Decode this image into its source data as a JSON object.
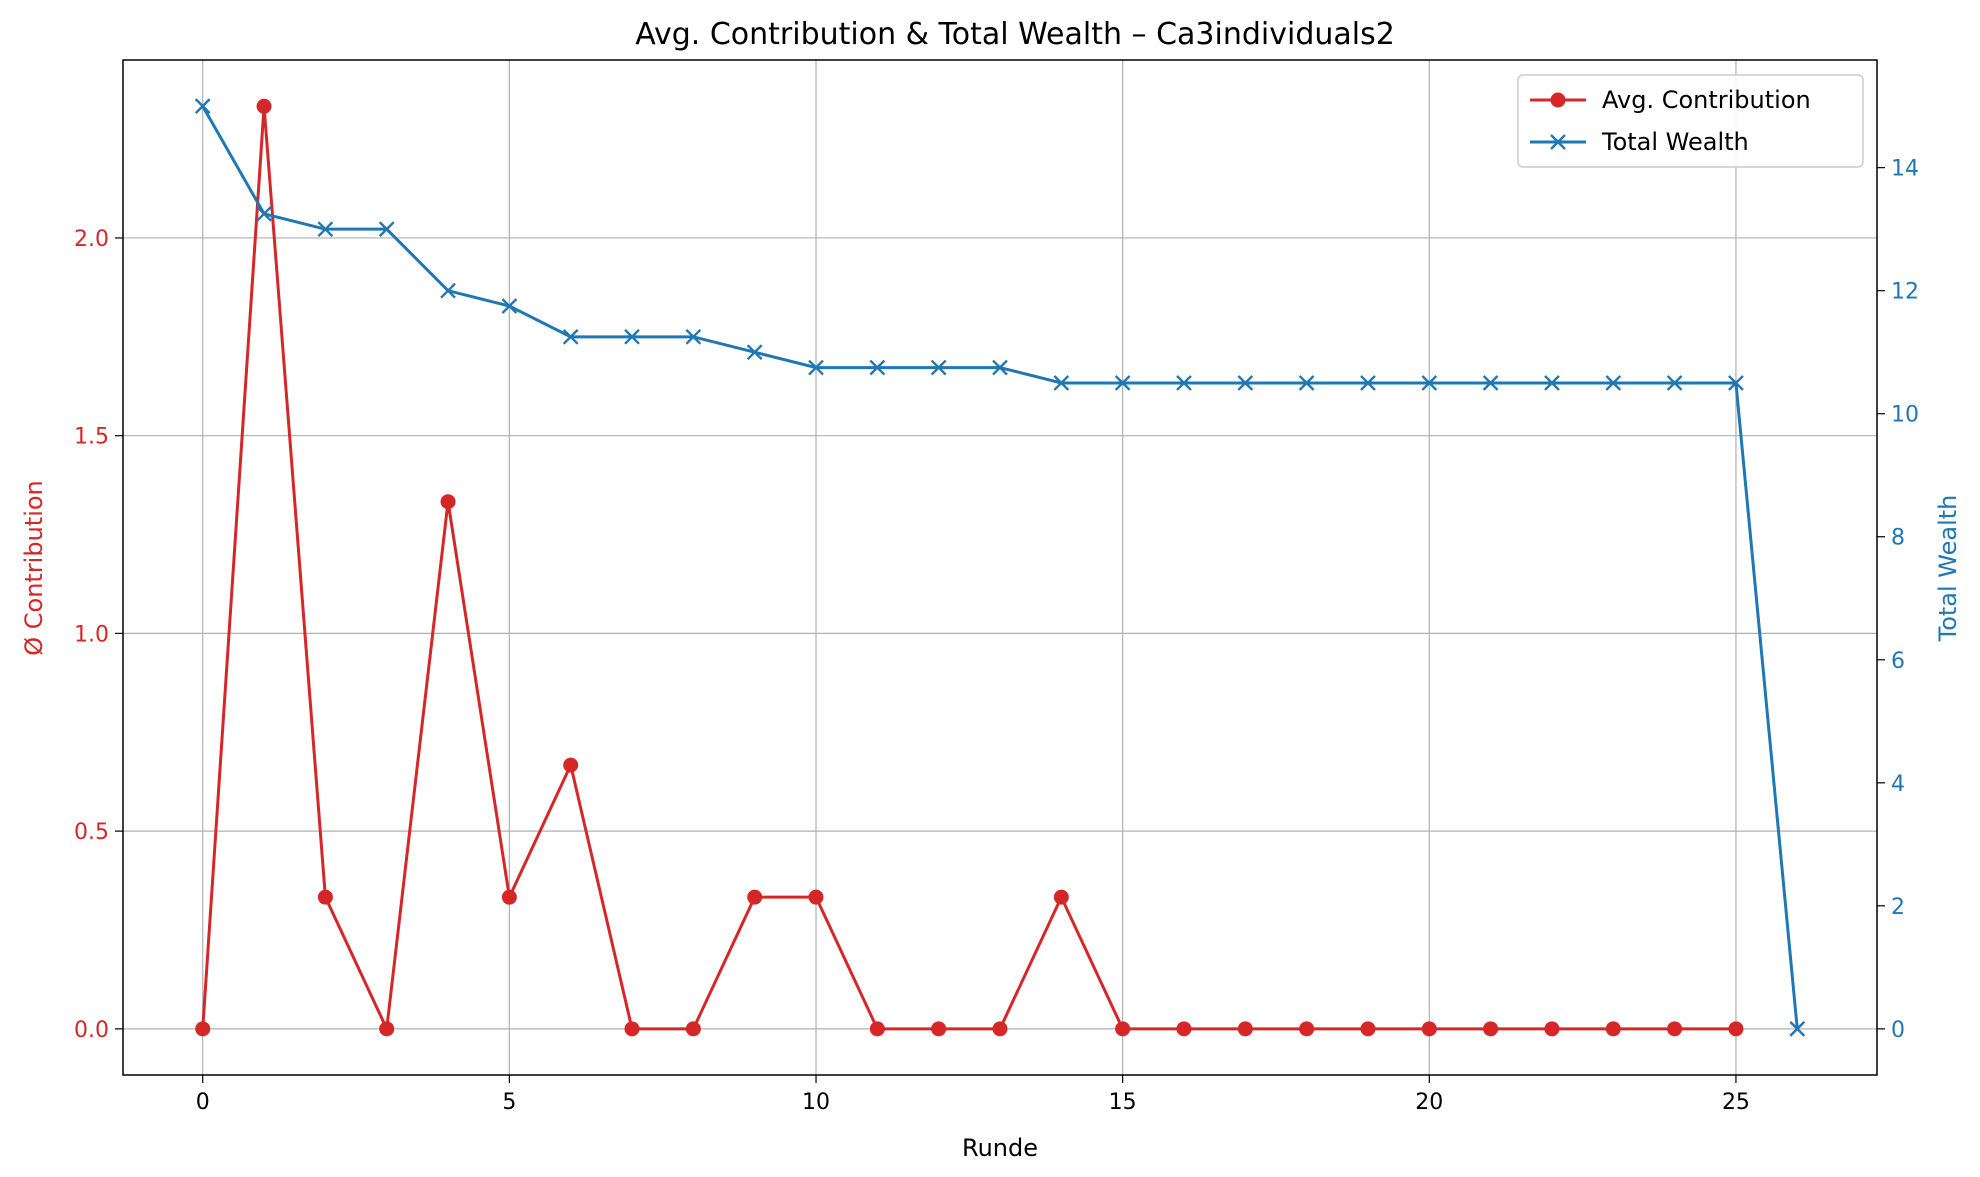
{
  "chart_data": {
    "type": "line",
    "title": "Avg. Contribution & Total Wealth – Ca3individuals2",
    "xlabel": "Runde",
    "ylabel_left": "Ø Contribution",
    "ylabel_right": "Total Wealth",
    "x_ticks": [
      0,
      5,
      10,
      15,
      20,
      25
    ],
    "y_left_ticks": [
      0.0,
      0.5,
      1.0,
      1.5,
      2.0
    ],
    "y_left_tick_labels": [
      "0.0",
      "0.5",
      "1.0",
      "1.5",
      "2.0"
    ],
    "y_right_ticks": [
      0,
      2,
      4,
      6,
      8,
      10,
      12,
      14
    ],
    "xlim": [
      -1.3,
      27.3
    ],
    "ylim_left": [
      -0.1167,
      2.45
    ],
    "ylim_right": [
      -0.75,
      15.75
    ],
    "grid": true,
    "legend_position": "top-right",
    "series": [
      {
        "name": "Avg. Contribution",
        "axis": "left",
        "color": "#d62728",
        "marker": "circle",
        "x": [
          0,
          1,
          2,
          3,
          4,
          5,
          6,
          7,
          8,
          9,
          10,
          11,
          12,
          13,
          14,
          15,
          16,
          17,
          18,
          19,
          20,
          21,
          22,
          23,
          24,
          25
        ],
        "values": [
          0,
          2.333,
          0.333,
          0,
          1.333,
          0.333,
          0.667,
          0,
          0,
          0.333,
          0.333,
          0,
          0,
          0,
          0.333,
          0,
          0,
          0,
          0,
          0,
          0,
          0,
          0,
          0,
          0,
          0
        ]
      },
      {
        "name": "Total Wealth",
        "axis": "right",
        "color": "#1f77b4",
        "marker": "x",
        "x": [
          0,
          1,
          2,
          3,
          4,
          5,
          6,
          7,
          8,
          9,
          10,
          11,
          12,
          13,
          14,
          15,
          16,
          17,
          18,
          19,
          20,
          21,
          22,
          23,
          24,
          25,
          26
        ],
        "values": [
          15,
          13.25,
          13,
          13,
          12,
          11.75,
          11.25,
          11.25,
          11.25,
          11,
          10.75,
          10.75,
          10.75,
          10.75,
          10.5,
          10.5,
          10.5,
          10.5,
          10.5,
          10.5,
          10.5,
          10.5,
          10.5,
          10.5,
          10.5,
          10.5,
          0
        ]
      }
    ]
  }
}
